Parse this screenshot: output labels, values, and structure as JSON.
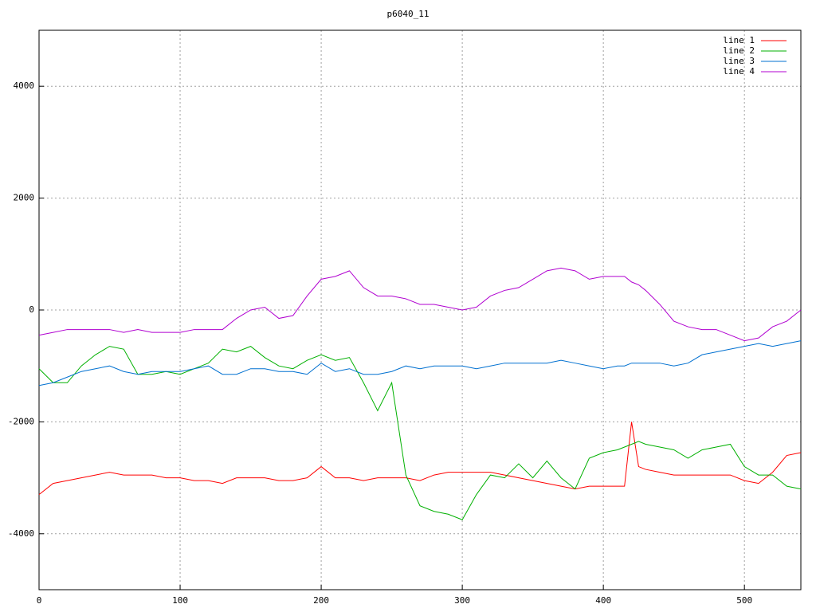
{
  "chart_data": {
    "type": "line",
    "title": "p6040_11",
    "x": [
      0,
      10,
      20,
      30,
      40,
      50,
      60,
      70,
      80,
      90,
      100,
      110,
      120,
      130,
      140,
      150,
      160,
      170,
      180,
      190,
      200,
      210,
      220,
      230,
      240,
      250,
      260,
      270,
      280,
      290,
      300,
      310,
      320,
      330,
      340,
      350,
      360,
      370,
      380,
      390,
      400,
      410,
      415,
      420,
      425,
      430,
      440,
      450,
      460,
      470,
      480,
      490,
      500,
      510,
      520,
      530,
      540
    ],
    "series": [
      {
        "name": "line 1",
        "color": "#ff0000",
        "values": [
          -3300,
          -3100,
          -3050,
          -3000,
          -2950,
          -2900,
          -2950,
          -2950,
          -2950,
          -3000,
          -3000,
          -3050,
          -3050,
          -3100,
          -3000,
          -3000,
          -3000,
          -3050,
          -3050,
          -3000,
          -2800,
          -3000,
          -3000,
          -3050,
          -3000,
          -3000,
          -3000,
          -3050,
          -2950,
          -2900,
          -2900,
          -2900,
          -2900,
          -2950,
          -3000,
          -3050,
          -3100,
          -3150,
          -3200,
          -3150,
          -3150,
          -3150,
          -3150,
          -2000,
          -2800,
          -2850,
          -2900,
          -2950,
          -2950,
          -2950,
          -2950,
          -2950,
          -3050,
          -3100,
          -2900,
          -2600,
          -2550
        ]
      },
      {
        "name": "line 2",
        "color": "#00b000",
        "values": [
          -1050,
          -1300,
          -1300,
          -1000,
          -800,
          -650,
          -700,
          -1150,
          -1150,
          -1100,
          -1150,
          -1050,
          -950,
          -700,
          -750,
          -650,
          -850,
          -1000,
          -1050,
          -900,
          -800,
          -900,
          -850,
          -1300,
          -1800,
          -1300,
          -2950,
          -3500,
          -3600,
          -3650,
          -3750,
          -3300,
          -2950,
          -3000,
          -2750,
          -3000,
          -2700,
          -3000,
          -3200,
          -2650,
          -2550,
          -2500,
          -2450,
          -2400,
          -2350,
          -2400,
          -2450,
          -2500,
          -2650,
          -2500,
          -2450,
          -2400,
          -2800,
          -2950,
          -2950,
          -3150,
          -3200
        ]
      },
      {
        "name": "line 3",
        "color": "#0070d0",
        "values": [
          -1350,
          -1300,
          -1200,
          -1100,
          -1050,
          -1000,
          -1100,
          -1150,
          -1100,
          -1100,
          -1100,
          -1050,
          -1000,
          -1150,
          -1150,
          -1050,
          -1050,
          -1100,
          -1100,
          -1150,
          -950,
          -1100,
          -1050,
          -1150,
          -1150,
          -1100,
          -1000,
          -1050,
          -1000,
          -1000,
          -1000,
          -1050,
          -1000,
          -950,
          -950,
          -950,
          -950,
          -900,
          -950,
          -1000,
          -1050,
          -1000,
          -1000,
          -950,
          -950,
          -950,
          -950,
          -1000,
          -950,
          -800,
          -750,
          -700,
          -650,
          -600,
          -650,
          -600,
          -550
        ]
      },
      {
        "name": "line 4",
        "color": "#b000d0",
        "values": [
          -450,
          -400,
          -350,
          -350,
          -350,
          -350,
          -400,
          -350,
          -400,
          -400,
          -400,
          -350,
          -350,
          -350,
          -150,
          0,
          50,
          -150,
          -100,
          250,
          550,
          600,
          700,
          400,
          250,
          250,
          200,
          100,
          100,
          50,
          0,
          50,
          250,
          350,
          400,
          550,
          700,
          750,
          700,
          550,
          600,
          600,
          600,
          500,
          450,
          350,
          100,
          -200,
          -300,
          -350,
          -350,
          -450,
          -550,
          -500,
          -300,
          -200,
          0
        ]
      }
    ],
    "xlim": [
      0,
      540
    ],
    "ylim": [
      -5000,
      5000
    ],
    "xticks": [
      0,
      100,
      200,
      300,
      400,
      500
    ],
    "yticks": [
      -4000,
      -2000,
      0,
      2000,
      4000
    ],
    "grid": true,
    "legend": "top-right"
  }
}
